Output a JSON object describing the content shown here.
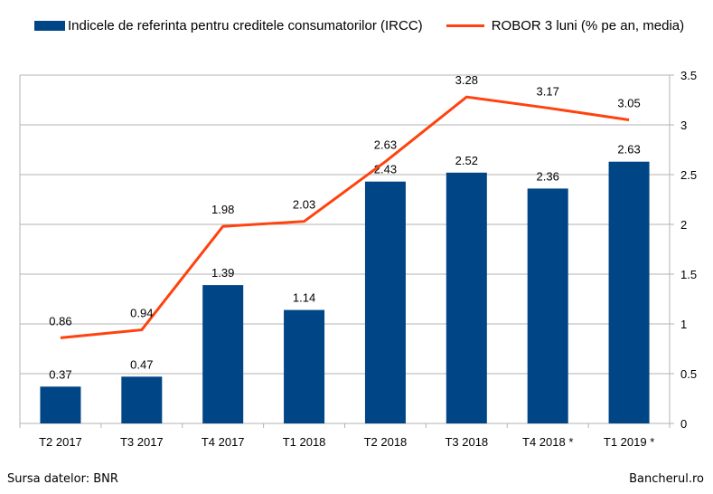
{
  "chart_data": {
    "type": "bar+line",
    "categories": [
      "T2 2017",
      "T3 2017",
      "T4 2017",
      "T1 2018",
      "T2 2018",
      "T3 2018",
      "T4 2018 *",
      "T1 2019 *"
    ],
    "series": [
      {
        "name": "Indicele de referinta pentru creditele consumatorilor (IRCC)",
        "type": "bar",
        "color": "#004586",
        "values": [
          0.37,
          0.47,
          1.39,
          1.14,
          2.43,
          2.52,
          2.36,
          2.63
        ]
      },
      {
        "name": "ROBOR 3 luni (% pe an, media)",
        "type": "line",
        "color": "#ff420e",
        "values": [
          0.86,
          0.94,
          1.98,
          2.03,
          2.63,
          3.28,
          3.17,
          3.05
        ]
      }
    ],
    "ylim": [
      0,
      3.5
    ],
    "yticks": [
      "0",
      "0.5",
      "1",
      "1.5",
      "2",
      "2.5",
      "3",
      "3.5"
    ],
    "y_axis_side": "right",
    "grid": true,
    "legend_position": "top"
  },
  "footer": {
    "source": "Sursa datelor: BNR",
    "brand": "Bancherul.ro"
  }
}
